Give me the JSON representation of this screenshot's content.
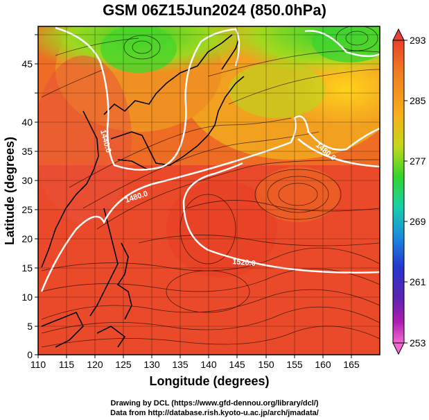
{
  "title": "GSM 06Z15Jun2024 (850.0hPa)",
  "x_axis": {
    "label": "Longitude (degrees)",
    "ticks": [
      "110",
      "115",
      "120",
      "125",
      "130",
      "135",
      "140",
      "145",
      "150",
      "155",
      "160",
      "165"
    ]
  },
  "y_axis": {
    "label": "Latitude  (degrees)",
    "ticks": [
      "0",
      "5",
      "10",
      "15",
      "20",
      "25",
      "30",
      "35",
      "40",
      "45"
    ]
  },
  "colorbar": {
    "labels": [
      "293",
      "285",
      "277",
      "269",
      "261",
      "253"
    ],
    "colors": [
      "#e8413a",
      "#f07a22",
      "#f2c21a",
      "#7ad11c",
      "#1bd43a",
      "#18c9c0",
      "#1b84e0",
      "#2231c8",
      "#5a1fb0",
      "#c01ab8",
      "#f06ad0"
    ]
  },
  "contour_labels": [
    "1440.0",
    "1480.0",
    "1520.0",
    "1480.0"
  ],
  "colors": {
    "warm": "#ea3f2a",
    "orange": "#ef7f22",
    "yellow": "#e7d71c",
    "green": "#52d32a",
    "contour": "#ffffff",
    "coast": "#000000"
  },
  "credits": {
    "line1": "Drawing by DCL (https://www.gfd-dennou.org/library/dcl/)",
    "line2": "Data from http://database.rish.kyoto-u.ac.jp/arch/jmadata/"
  },
  "chart_data": {
    "type": "heatmap",
    "variable": "temperature with streamlines and geopotential height contours",
    "level": "850.0hPa",
    "xlim": [
      110,
      170
    ],
    "ylim": [
      0,
      50
    ],
    "color_range": [
      253,
      293
    ],
    "contours": [
      1440,
      1480,
      1520
    ]
  }
}
